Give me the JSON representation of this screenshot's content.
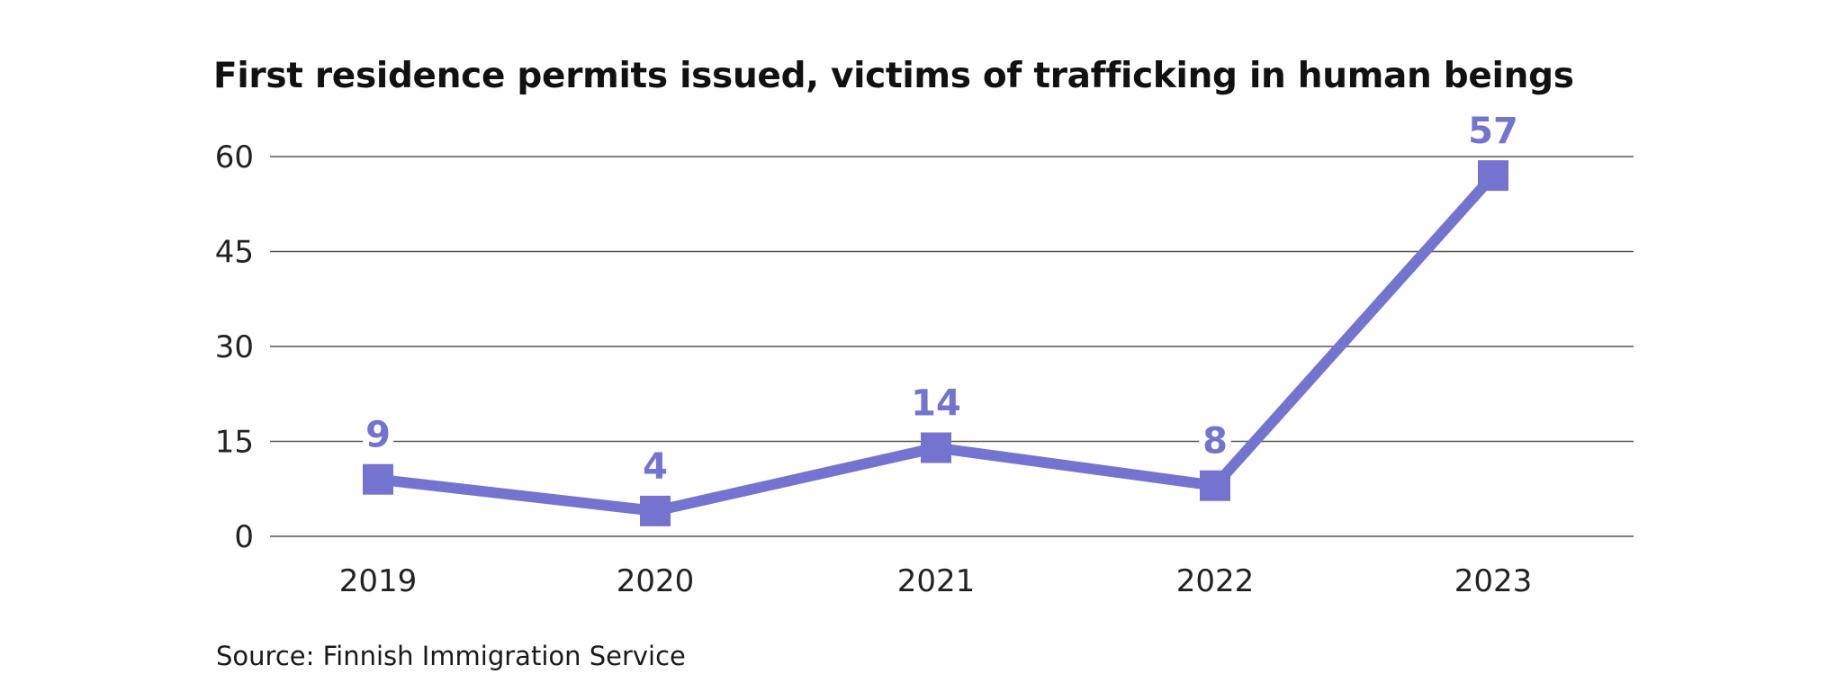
{
  "title": "First residence permits issued, victims of trafficking in human beings",
  "source": "Source: Finnish Immigration Service",
  "colors": {
    "series": "#7474d0",
    "grid": "#555555",
    "text": "#222222"
  },
  "chart_data": {
    "type": "line",
    "title": "First residence permits issued, victims of trafficking in human beings",
    "categories": [
      "2019",
      "2020",
      "2021",
      "2022",
      "2023"
    ],
    "series": [
      {
        "values": [
          9,
          4,
          14,
          8,
          57
        ]
      }
    ],
    "data_labels": [
      "9",
      "4",
      "14",
      "8",
      "57"
    ],
    "yticks": [
      0,
      15,
      30,
      45,
      60
    ],
    "ytick_labels": [
      "0",
      "15",
      "30",
      "45",
      "60"
    ],
    "ylim": [
      0,
      60
    ],
    "grid": true,
    "legend": false,
    "marker": "square"
  }
}
